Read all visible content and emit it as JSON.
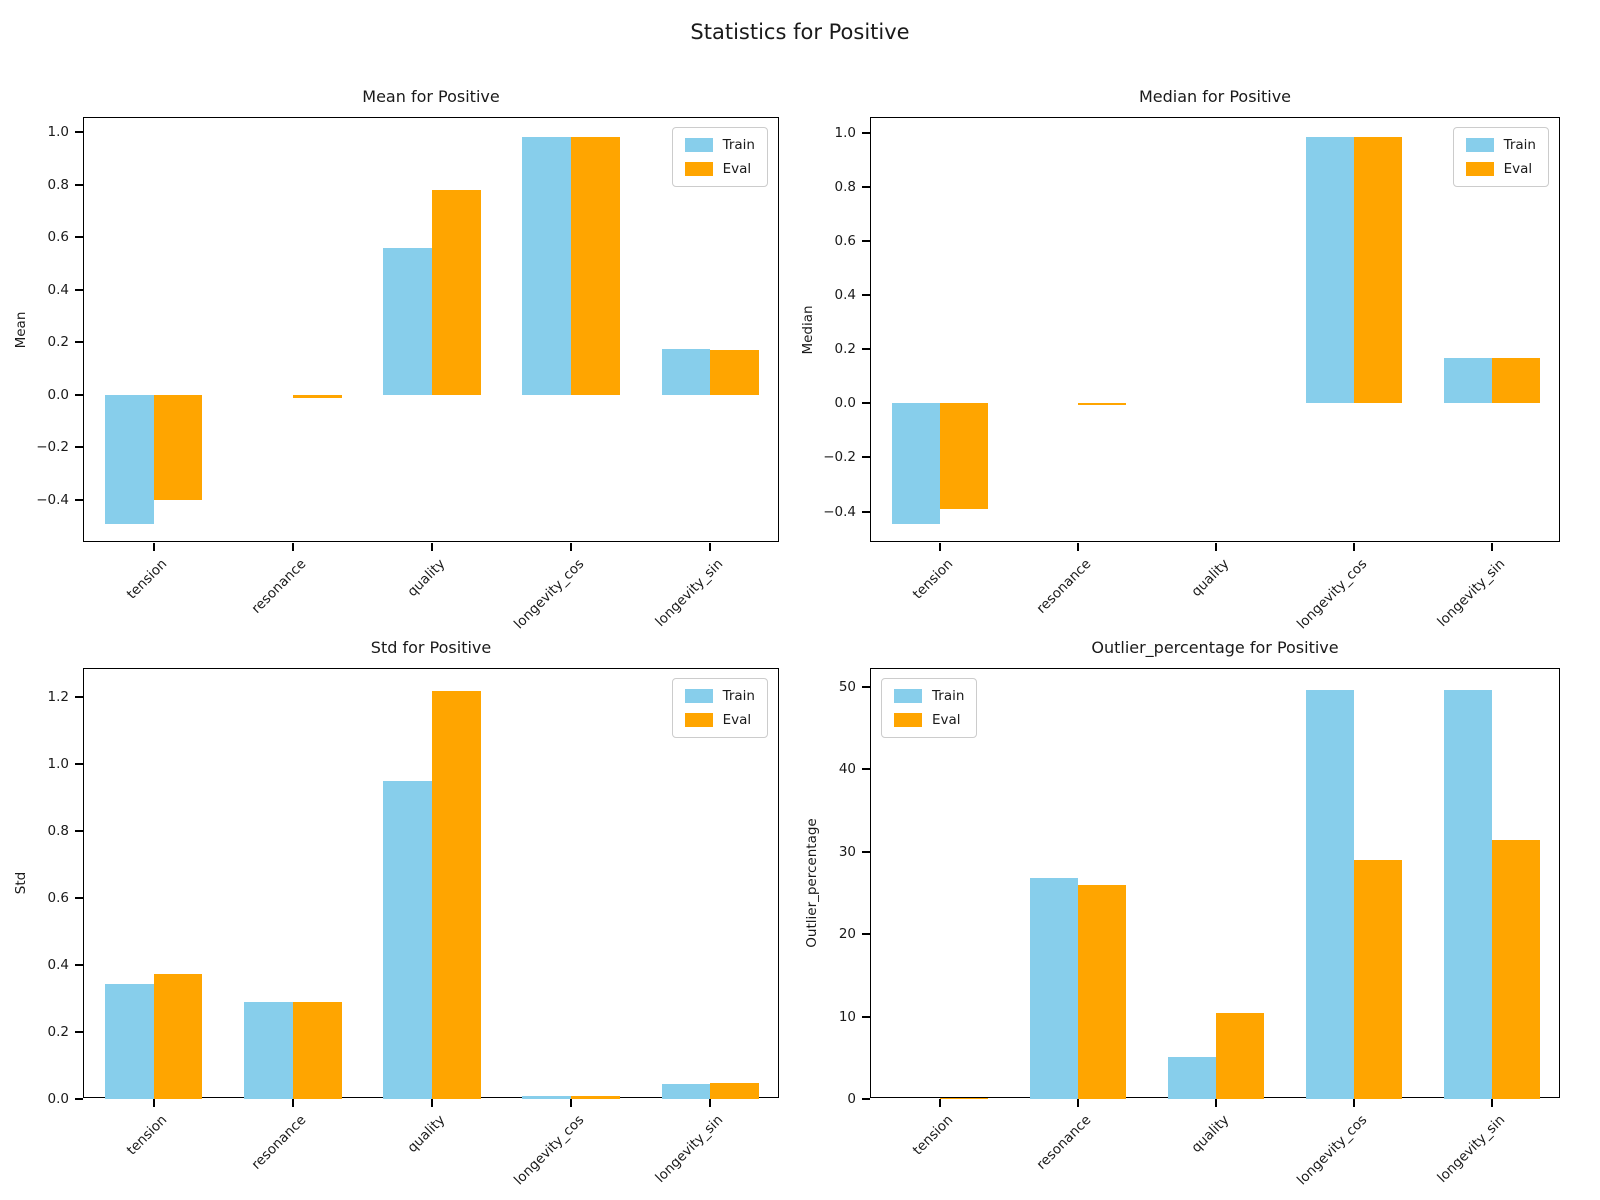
{
  "figure": {
    "suptitle": "Statistics for Positive"
  },
  "colors": {
    "train": "#87CEEB",
    "eval": "#FFA500"
  },
  "chart_data": [
    {
      "type": "bar",
      "title": "Mean for Positive",
      "ylabel": "Mean",
      "categories": [
        "tension",
        "resonance",
        "quality",
        "longevity_cos",
        "longevity_sin"
      ],
      "series": [
        {
          "name": "Train",
          "color": "#87CEEB",
          "values": [
            -0.49,
            0.0,
            0.56,
            0.98,
            0.175
          ]
        },
        {
          "name": "Eval",
          "color": "#FFA500",
          "values": [
            -0.4,
            -0.01,
            0.78,
            0.98,
            0.17
          ]
        }
      ],
      "ylim": [
        -0.5635,
        1.0535
      ],
      "yticks": [
        -0.4,
        -0.2,
        0.0,
        0.2,
        0.4,
        0.6,
        0.8,
        1.0
      ],
      "ytick_decimals": 1,
      "grid": false,
      "legend_position": "top-right"
    },
    {
      "type": "bar",
      "title": "Median for Positive",
      "ylabel": "Median",
      "categories": [
        "tension",
        "resonance",
        "quality",
        "longevity_cos",
        "longevity_sin"
      ],
      "series": [
        {
          "name": "Train",
          "color": "#87CEEB",
          "values": [
            -0.445,
            0.0,
            0.0,
            0.985,
            0.17
          ]
        },
        {
          "name": "Eval",
          "color": "#FFA500",
          "values": [
            -0.39,
            -0.005,
            0.0,
            0.985,
            0.17
          ]
        }
      ],
      "ylim": [
        -0.5165,
        1.0565
      ],
      "yticks": [
        -0.4,
        -0.2,
        0.0,
        0.2,
        0.4,
        0.6,
        0.8,
        1.0
      ],
      "ytick_decimals": 1,
      "grid": false,
      "legend_position": "top-right"
    },
    {
      "type": "bar",
      "title": "Std for Positive",
      "ylabel": "Std",
      "categories": [
        "tension",
        "resonance",
        "quality",
        "longevity_cos",
        "longevity_sin"
      ],
      "series": [
        {
          "name": "Train",
          "color": "#87CEEB",
          "values": [
            0.345,
            0.29,
            0.95,
            0.008,
            0.045
          ]
        },
        {
          "name": "Eval",
          "color": "#FFA500",
          "values": [
            0.375,
            0.29,
            1.22,
            0.008,
            0.047
          ]
        }
      ],
      "ylim": [
        0,
        1.285
      ],
      "yticks": [
        0.0,
        0.2,
        0.4,
        0.6,
        0.8,
        1.0,
        1.2
      ],
      "ytick_decimals": 1,
      "grid": false,
      "legend_position": "top-right"
    },
    {
      "type": "bar",
      "title": "Outlier_percentage for Positive",
      "ylabel": "Outlier_percentage",
      "categories": [
        "tension",
        "resonance",
        "quality",
        "longevity_cos",
        "longevity_sin"
      ],
      "series": [
        {
          "name": "Train",
          "color": "#87CEEB",
          "values": [
            0.0,
            26.8,
            5.1,
            49.6,
            49.6
          ]
        },
        {
          "name": "Eval",
          "color": "#FFA500",
          "values": [
            0.15,
            26.0,
            10.4,
            29.0,
            31.5
          ]
        }
      ],
      "ylim": [
        0,
        52.2
      ],
      "yticks": [
        0,
        10,
        20,
        30,
        40,
        50
      ],
      "ytick_decimals": 0,
      "grid": false,
      "legend_position": "top-left"
    }
  ]
}
